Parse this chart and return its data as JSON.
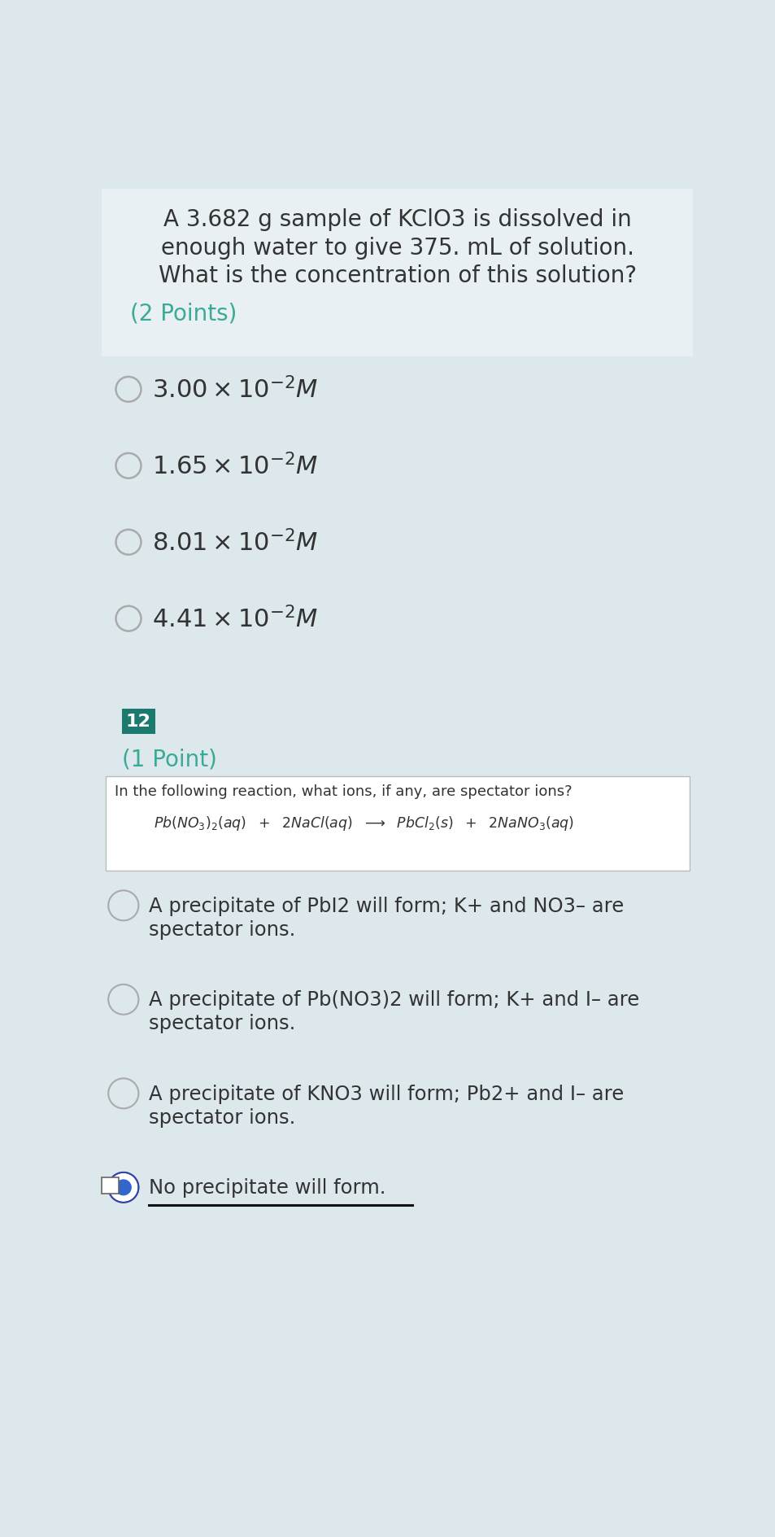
{
  "bg_color": "#dde8ed",
  "q1_box_color": "#dde8ed",
  "white_bg": "#ffffff",
  "teal_badge": "#1a7a6e",
  "teal_text": "#3aaa96",
  "dark_text": "#333333",
  "circle_color": "#aaaaaa",
  "q1_line1": "A 3.682 g sample of KClO3 is dissolved in",
  "q1_line2": "enough water to give 375. mL of solution.",
  "q1_line3": "What is the concentration of this solution?",
  "q1_points": "(2 Points)",
  "badge_number": "12",
  "q2_points": "(1 Point)",
  "q2_box_question": "In the following reaction, what ions, if any, are spectator ions?",
  "options2_line1": [
    "A precipitate of PbI2 will form; K+ and NO3– are",
    "A precipitate of Pb(NO3)2 will form; K+ and I– are",
    "A precipitate of KNO3 will form; Pb2+ and I– are",
    "No precipitate will form."
  ],
  "options2_line2": [
    "spectator ions.",
    "spectator ions.",
    "spectator ions.",
    ""
  ],
  "selected_q2": 3,
  "fig_width": 9.54,
  "fig_height": 18.9
}
